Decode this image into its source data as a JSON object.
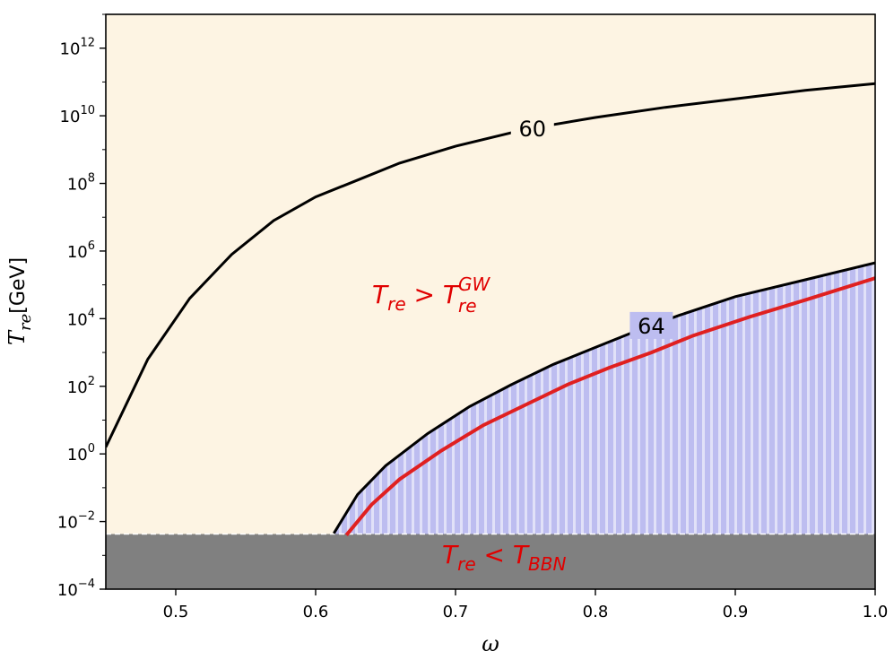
{
  "chart_data": {
    "type": "area",
    "xlabel": "ω",
    "ylabel": {
      "symbol": "T",
      "subscript": "re",
      "unit": "[GeV]"
    },
    "xlim": [
      0.45,
      1.0
    ],
    "ylim_log10": [
      -4,
      13
    ],
    "y_scale": "log",
    "x_ticks": [
      "0.5",
      "0.6",
      "0.7",
      "0.8",
      "0.9",
      "1.0"
    ],
    "x_tick_values": [
      0.5,
      0.6,
      0.7,
      0.8,
      0.9,
      1.0
    ],
    "y_ticks": [
      {
        "base": "10",
        "exp": "−4",
        "log10": -4
      },
      {
        "base": "10",
        "exp": "−2",
        "log10": -2
      },
      {
        "base": "10",
        "exp": "0",
        "log10": 0
      },
      {
        "base": "10",
        "exp": "2",
        "log10": 2
      },
      {
        "base": "10",
        "exp": "4",
        "log10": 4
      },
      {
        "base": "10",
        "exp": "6",
        "log10": 6
      },
      {
        "base": "10",
        "exp": "8",
        "log10": 8
      },
      {
        "base": "10",
        "exp": "10",
        "log10": 10
      },
      {
        "base": "10",
        "exp": "12",
        "log10": 12
      }
    ],
    "colors": {
      "background": "#fdf4e3",
      "excluded_region": "#bdbdf0",
      "hatch": "#ffffff",
      "bbn_region": "#808080",
      "gw_boundary": "#e02020",
      "contour": "#000000",
      "label_red": "#e00000"
    },
    "contours": [
      {
        "label": "60",
        "x": [
          0.45,
          0.48,
          0.51,
          0.54,
          0.57,
          0.6,
          0.63,
          0.66,
          0.7,
          0.75,
          0.8,
          0.85,
          0.9,
          0.95,
          1.0
        ],
        "log10_T": [
          0.2,
          2.8,
          4.6,
          5.9,
          6.9,
          7.6,
          8.1,
          8.6,
          9.1,
          9.6,
          9.95,
          10.25,
          10.5,
          10.75,
          10.95
        ],
        "label_at_x": 0.755
      },
      {
        "label": "64",
        "x": [
          0.613,
          0.63,
          0.65,
          0.68,
          0.71,
          0.74,
          0.77,
          0.8,
          0.83,
          0.86,
          0.9,
          0.95,
          1.0
        ],
        "log10_T": [
          -2.35,
          -1.2,
          -0.35,
          0.6,
          1.4,
          2.05,
          2.65,
          3.15,
          3.65,
          4.1,
          4.65,
          5.15,
          5.65
        ],
        "label_at_x": 0.84
      }
    ],
    "gw_boundary": {
      "x": [
        0.622,
        0.64,
        0.66,
        0.69,
        0.72,
        0.75,
        0.78,
        0.81,
        0.84,
        0.87,
        0.91,
        0.95,
        1.0
      ],
      "log10_T": [
        -2.4,
        -1.5,
        -0.75,
        0.1,
        0.85,
        1.45,
        2.05,
        2.55,
        3.0,
        3.5,
        4.05,
        4.55,
        5.2
      ]
    },
    "bbn_limit_log10": -2.37,
    "annotations": {
      "region_gw": {
        "T": "T",
        "sub": "re",
        "op": " > ",
        "T2": "T",
        "sup2": "GW",
        "sub2": "re"
      },
      "region_bbn": {
        "T": "T",
        "sub": "re",
        "op": " < ",
        "T2": "T",
        "sub2": "BBN"
      }
    }
  }
}
